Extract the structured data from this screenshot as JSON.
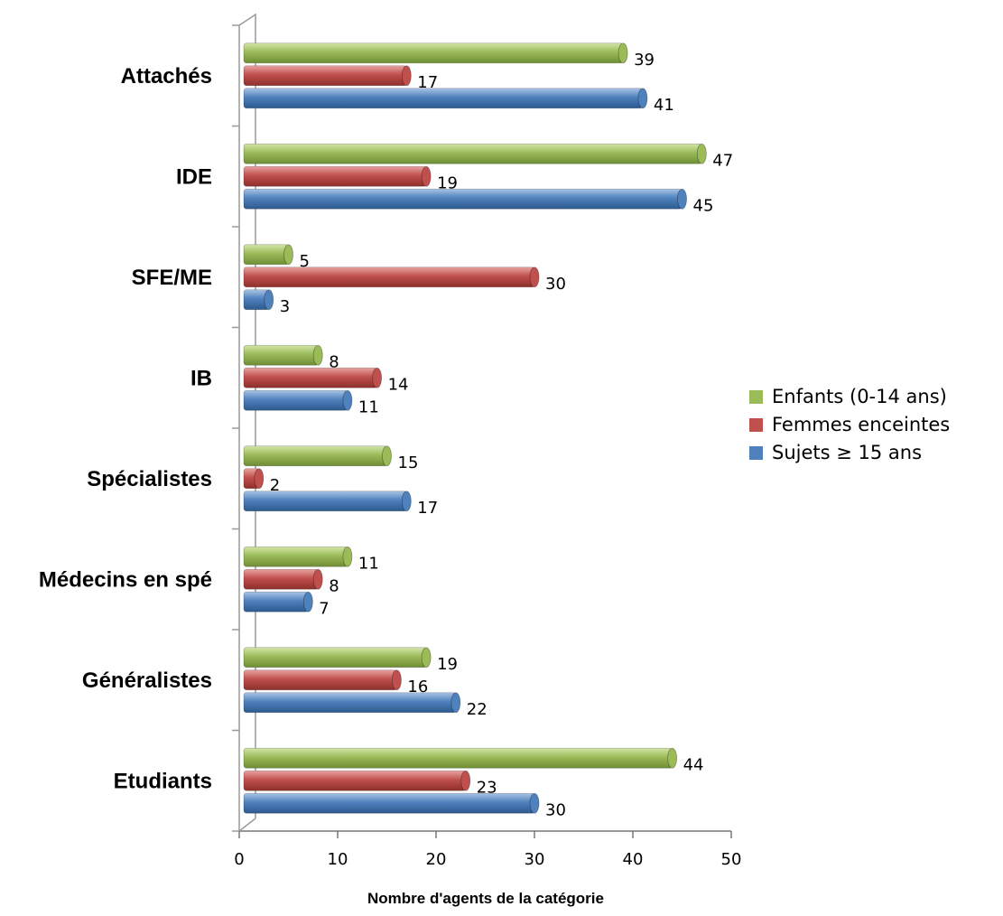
{
  "chart_data": {
    "type": "bar",
    "orientation": "horizontal",
    "categories": [
      "Attachés",
      "IDE",
      "SFE/ME",
      "IB",
      "Spécialistes",
      "Médecins en spé",
      "Généralistes",
      "Etudiants"
    ],
    "series": [
      {
        "name": "Enfants (0-14 ans)",
        "color": "#9BBB59",
        "values": [
          39,
          47,
          5,
          8,
          15,
          11,
          19,
          44
        ]
      },
      {
        "name": "Femmes enceintes",
        "color": "#C0504D",
        "values": [
          17,
          19,
          30,
          14,
          2,
          8,
          16,
          23
        ]
      },
      {
        "name": "Sujets ≥ 15 ans",
        "color": "#4F81BD",
        "values": [
          41,
          45,
          3,
          11,
          17,
          7,
          22,
          30
        ]
      }
    ],
    "xlabel": "Nombre d'agents de la catégorie",
    "ylabel": "",
    "xlim": [
      0,
      50
    ],
    "xticks": [
      0,
      10,
      20,
      30,
      40,
      50
    ],
    "grid": false,
    "legend_position": "right"
  }
}
